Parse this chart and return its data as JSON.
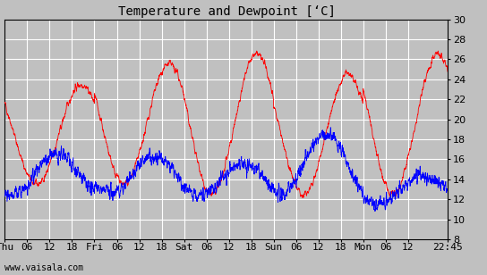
{
  "title": "Temperature and Dewpoint [\\u2018C]",
  "yticks": [
    8,
    10,
    12,
    14,
    16,
    18,
    20,
    22,
    24,
    26,
    28,
    30
  ],
  "ylim": [
    8,
    30
  ],
  "xtick_labels": [
    "Thu",
    "06",
    "12",
    "18",
    "Fri",
    "06",
    "12",
    "18",
    "Sat",
    "06",
    "12",
    "18",
    "Sun",
    "06",
    "12",
    "18",
    "Mon",
    "06",
    "12",
    "22:45"
  ],
  "bg_color": "#c0c0c0",
  "grid_color": "white",
  "temp_color": "red",
  "dew_color": "blue",
  "watermark": "www.vaisala.com",
  "title_fontsize": 10,
  "tick_fontsize": 8
}
